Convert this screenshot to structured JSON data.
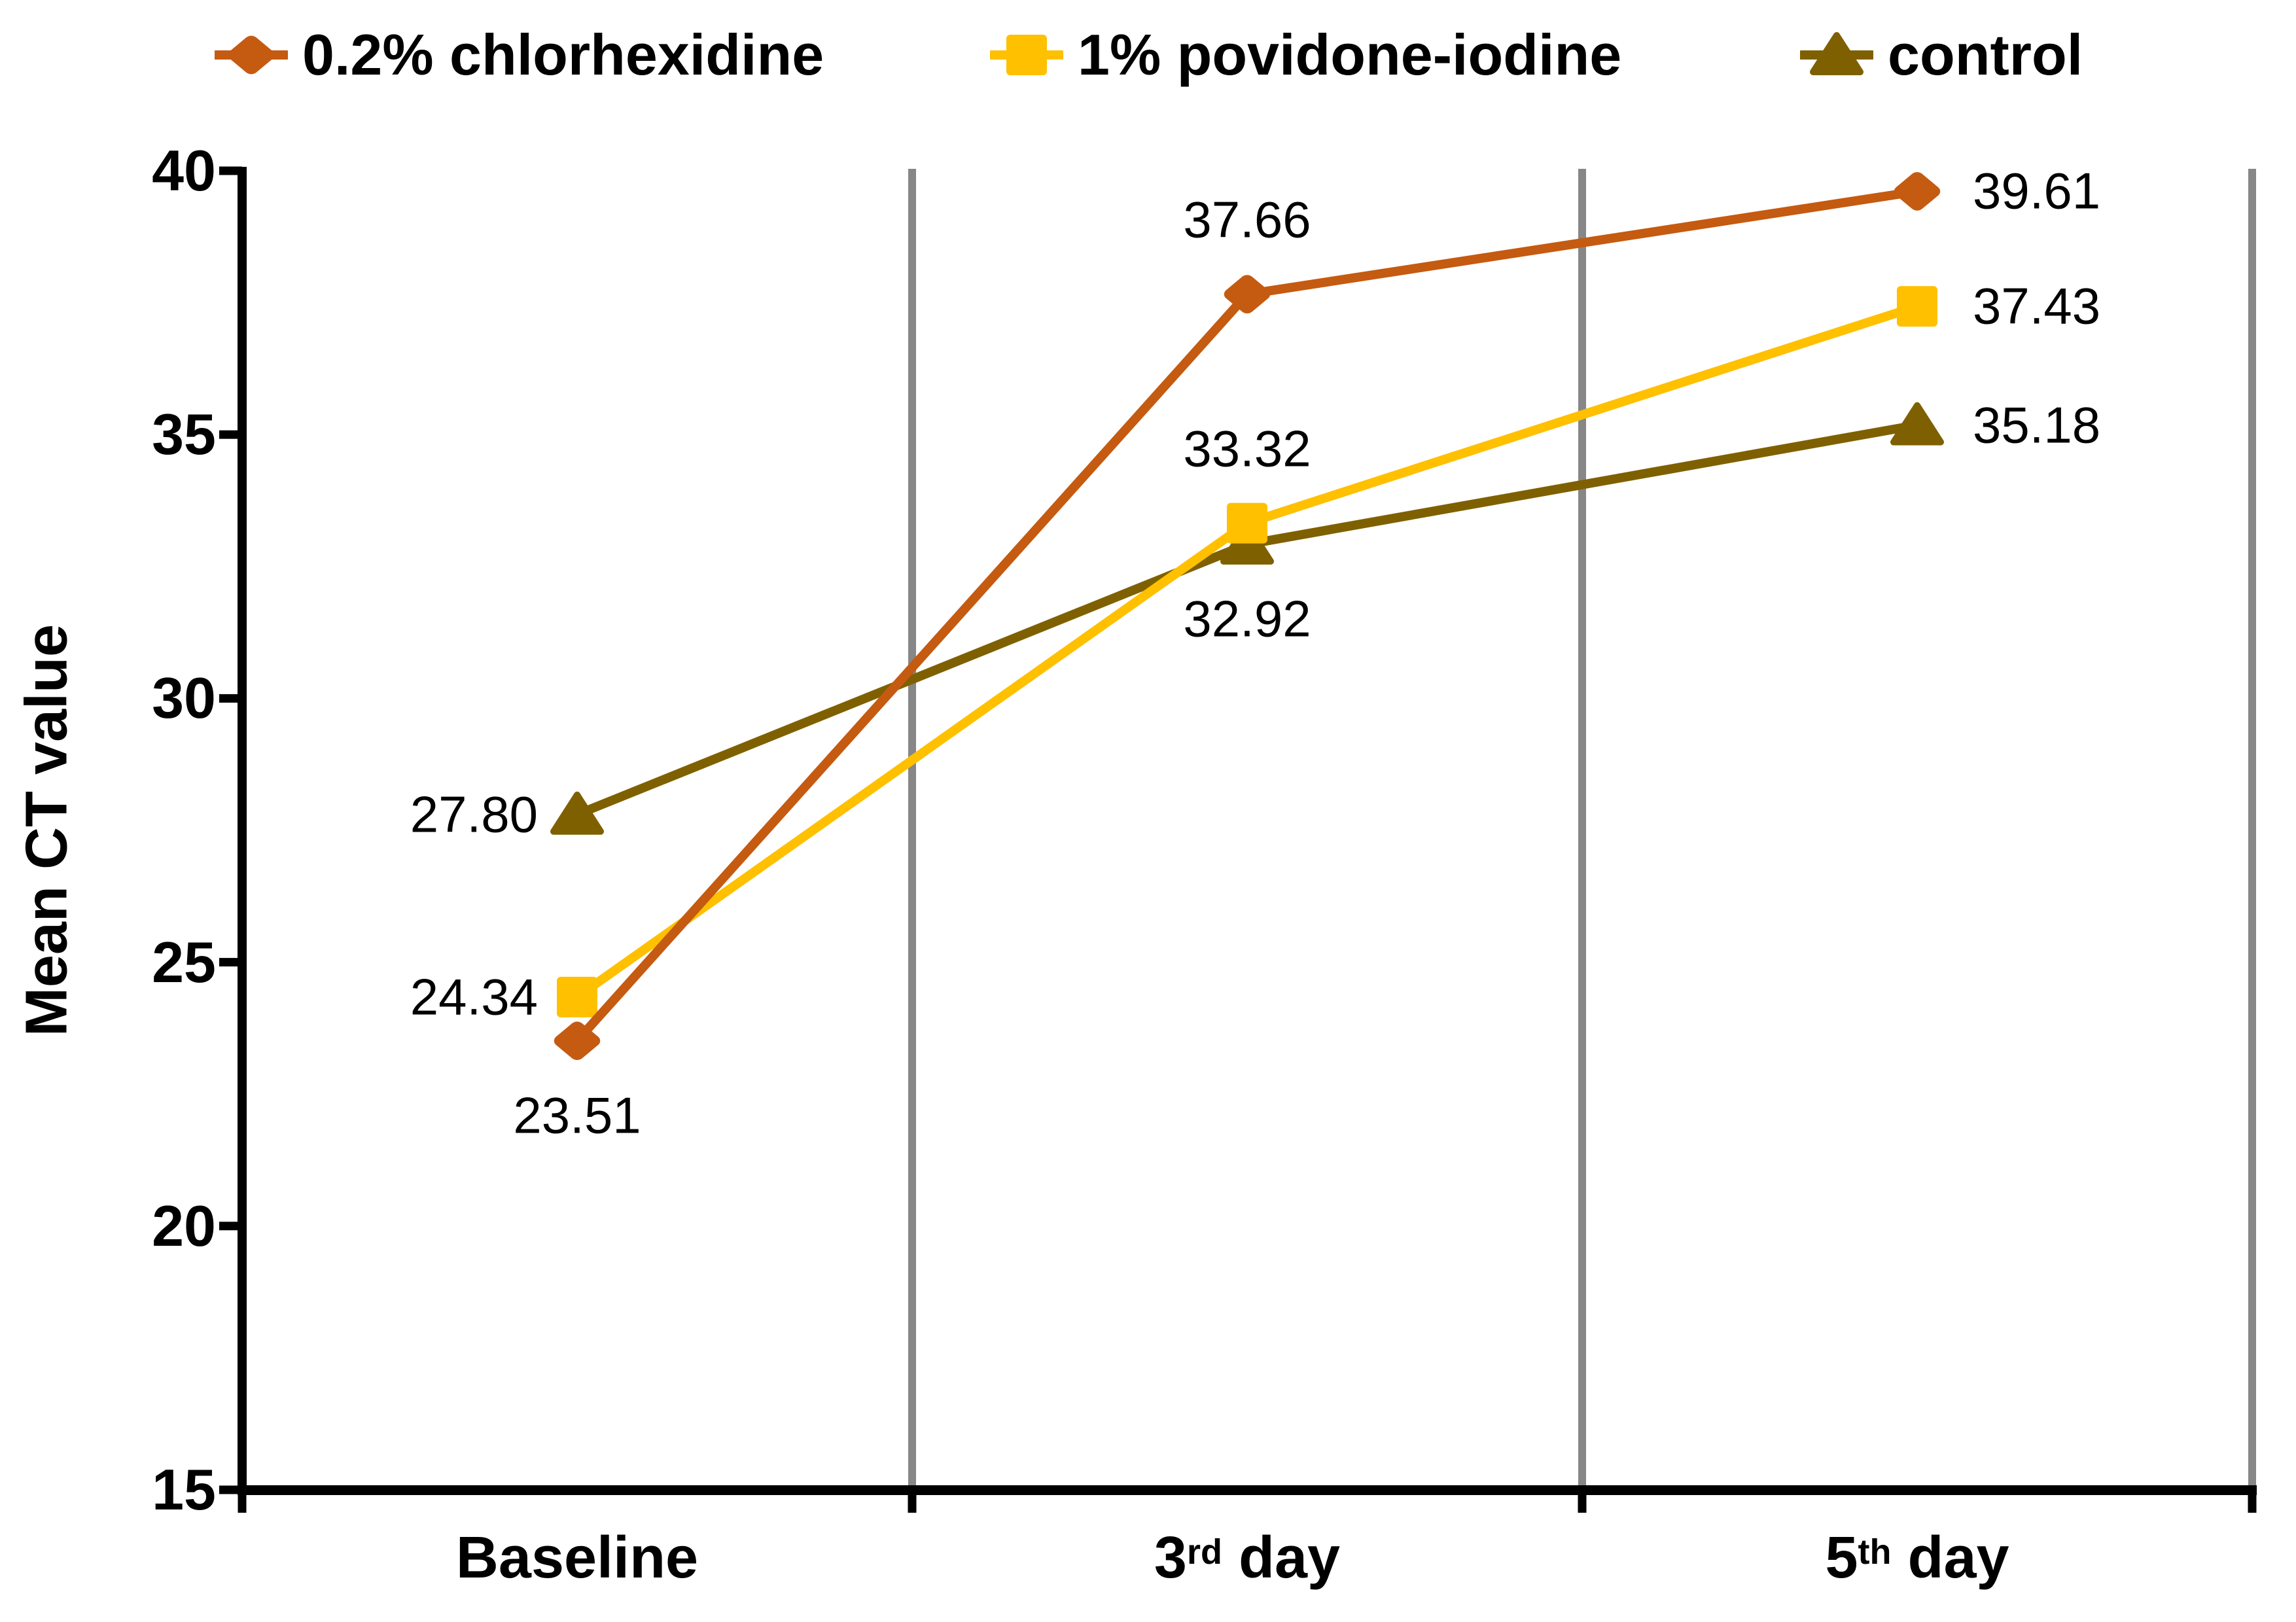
{
  "chart_data": {
    "type": "line",
    "title": "",
    "xlabel": "",
    "ylabel": "Mean CT value",
    "categories_text": [
      "Baseline",
      "3rd day",
      "5th day"
    ],
    "categories": [
      {
        "pre": "Baseline",
        "sup": "",
        "post": ""
      },
      {
        "pre": "3",
        "sup": "rd",
        "post": " day"
      },
      {
        "pre": "5",
        "sup": "th",
        "post": " day"
      }
    ],
    "y_axis": {
      "min": 15,
      "max": 40,
      "step": 5,
      "tick_labels_top_to_bottom": [
        "40",
        "35",
        "30",
        "25",
        "20",
        "15"
      ]
    },
    "grid": {
      "vertical_category_boundaries": true,
      "horizontal": false
    },
    "legend_position": "top",
    "series_draw_order_bottom_to_top": [
      {
        "name": "control",
        "marker": "triangle",
        "color": "#7F6000",
        "values": [
          27.8,
          32.92,
          35.18
        ],
        "labels": [
          "27.80",
          "32.92",
          "35.18"
        ],
        "label_placements": [
          "left",
          "below",
          "right"
        ]
      },
      {
        "name": "1% povidone-iodine",
        "marker": "square",
        "color": "#FFC000",
        "values": [
          24.34,
          33.32,
          37.43
        ],
        "labels": [
          "24.34",
          "33.32",
          "37.43"
        ],
        "label_placements": [
          "left",
          "above",
          "right"
        ]
      },
      {
        "name": "0.2% chlorhexidine",
        "marker": "diamond",
        "color": "#C55A11",
        "values": [
          23.51,
          37.66,
          39.61
        ],
        "labels": [
          "23.51",
          "37.66",
          "39.61"
        ],
        "label_placements": [
          "below",
          "above",
          "right"
        ]
      }
    ]
  },
  "legend": {
    "items": [
      {
        "label": "0.2% chlorhexidine",
        "marker": "diamond",
        "color": "#C55A11"
      },
      {
        "label": "1% povidone-iodine",
        "marker": "square",
        "color": "#FFC000"
      },
      {
        "label": "control",
        "marker": "triangle",
        "color": "#7F6000"
      }
    ]
  },
  "colors": {
    "axis": "#000000",
    "gridline": "#878787",
    "text": "#000000",
    "background": "#FFFFFF"
  }
}
